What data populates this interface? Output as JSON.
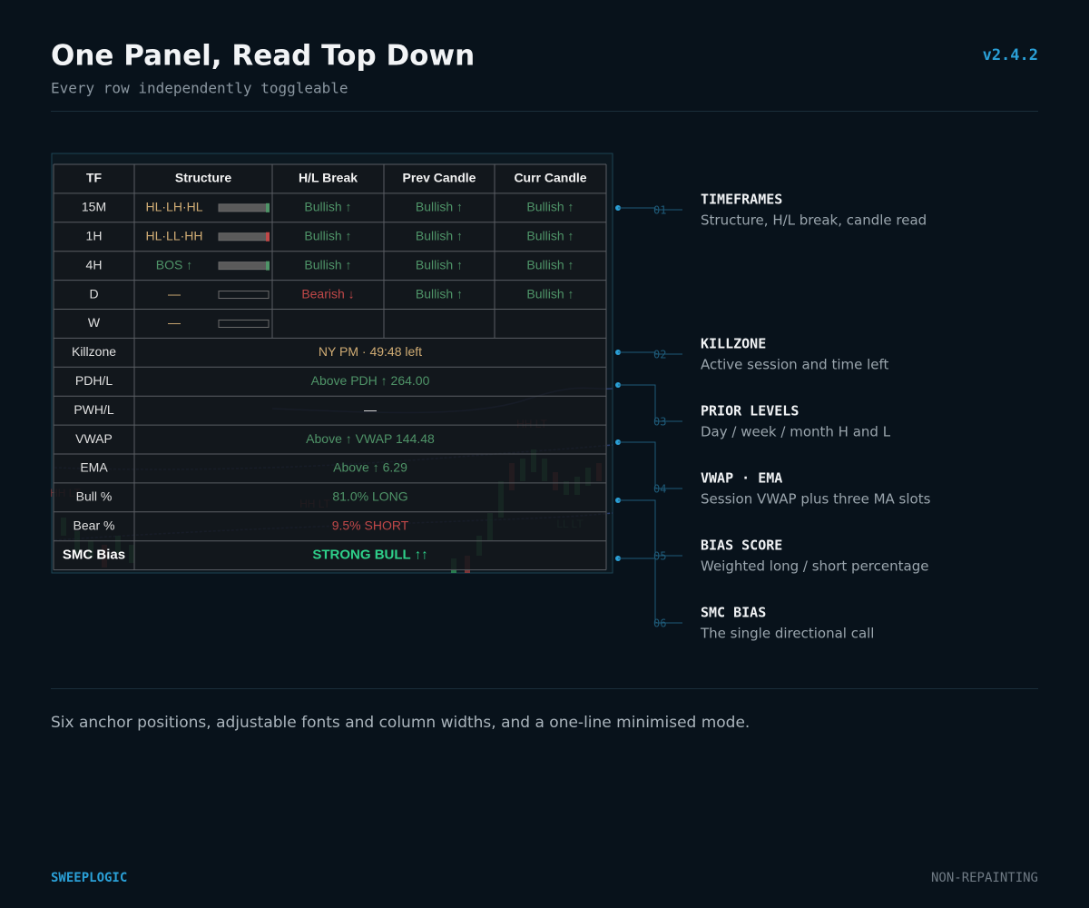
{
  "header": {
    "title": "One Panel, Read Top Down",
    "subtitle": "Every row independently toggleable",
    "version": "v2.4.2"
  },
  "panel": {
    "columns": [
      "TF",
      "Structure",
      "H/L Break",
      "Prev Candle",
      "Curr Candle"
    ],
    "timeframe_rows": [
      {
        "tf": "15M",
        "structure": "HL·LH·HL",
        "hl_break": "Bullish ↑",
        "prev_candle": "Bullish ↑",
        "curr_candle": "Bullish ↑"
      },
      {
        "tf": "1H",
        "structure": "HL·LL·HH",
        "hl_break": "Bullish ↑",
        "prev_candle": "Bullish ↑",
        "curr_candle": "Bullish ↑"
      },
      {
        "tf": "4H",
        "structure": "BOS ↑",
        "hl_break": "Bullish ↑",
        "prev_candle": "Bullish ↑",
        "curr_candle": "Bullish ↑"
      },
      {
        "tf": "D",
        "structure": "—",
        "hl_break": "Bearish ↓",
        "prev_candle": "Bullish ↑",
        "curr_candle": "Bullish ↑"
      },
      {
        "tf": "W",
        "structure": "—",
        "hl_break": null,
        "prev_candle": null,
        "curr_candle": null
      }
    ],
    "summary_rows": [
      {
        "label": "Killzone",
        "value": "NY PM · 49:48 left"
      },
      {
        "label": "PDH/L",
        "value": "Above PDH ↑  264.00"
      },
      {
        "label": "PWH/L",
        "value": "—"
      },
      {
        "label": "VWAP",
        "value": "Above ↑ VWAP  144.48"
      },
      {
        "label": "EMA",
        "value": "Above ↑  6.29"
      },
      {
        "label": "Bull %",
        "value": "81.0% LONG"
      },
      {
        "label": "Bear %",
        "value": "9.5% SHORT"
      },
      {
        "label": "SMC Bias",
        "value": "STRONG BULL ↑↑"
      }
    ],
    "chart_labels": [
      "HH LT",
      "HH LT",
      "LL LT",
      "HH LT"
    ]
  },
  "annotations": [
    {
      "number": "01",
      "title": "TIMEFRAMES",
      "description": "Structure, H/L break, candle read"
    },
    {
      "number": "02",
      "title": "KILLZONE",
      "description": "Active session and time left"
    },
    {
      "number": "03",
      "title": "PRIOR LEVELS",
      "description": "Day / week / month H and L"
    },
    {
      "number": "04",
      "title": "VWAP  ·  EMA",
      "description": "Session VWAP plus three MA slots"
    },
    {
      "number": "05",
      "title": "BIAS SCORE",
      "description": "Weighted long / short percentage"
    },
    {
      "number": "06",
      "title": "SMC BIAS",
      "description": "The single directional call"
    }
  ],
  "footer": {
    "note": "Six anchor positions, adjustable fonts and column widths, and a one-line minimised mode.",
    "brand": "SWEEPLOGIC",
    "tag": "NON-REPAINTING"
  }
}
